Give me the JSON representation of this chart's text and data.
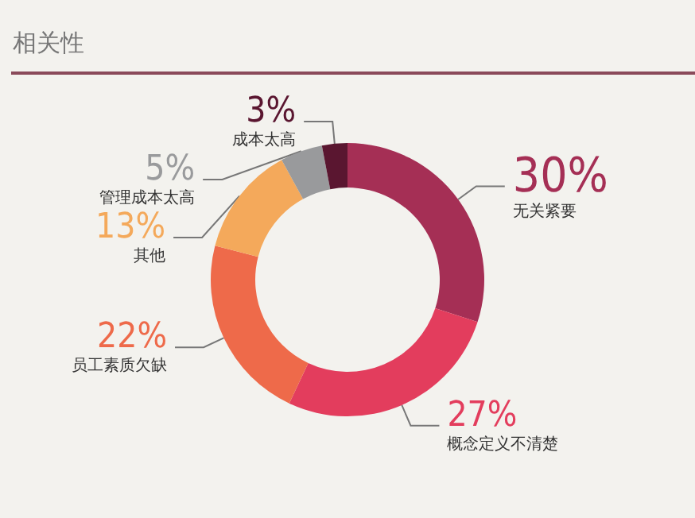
{
  "chart_data": {
    "type": "donut",
    "title": "相关性",
    "categories": [
      "无关紧要",
      "概念定义不清楚",
      "员工素质欠缺",
      "其他",
      "管理成本太高",
      "成本太高"
    ],
    "values": [
      30,
      27,
      22,
      13,
      5,
      3
    ],
    "value_labels": [
      "30%",
      "27%",
      "22%",
      "13%",
      "5%",
      "3%"
    ],
    "colors": [
      "#a52f55",
      "#e33d5d",
      "#ee6a4a",
      "#f4a95b",
      "#999a9c",
      "#5a1630"
    ],
    "legend": false
  }
}
